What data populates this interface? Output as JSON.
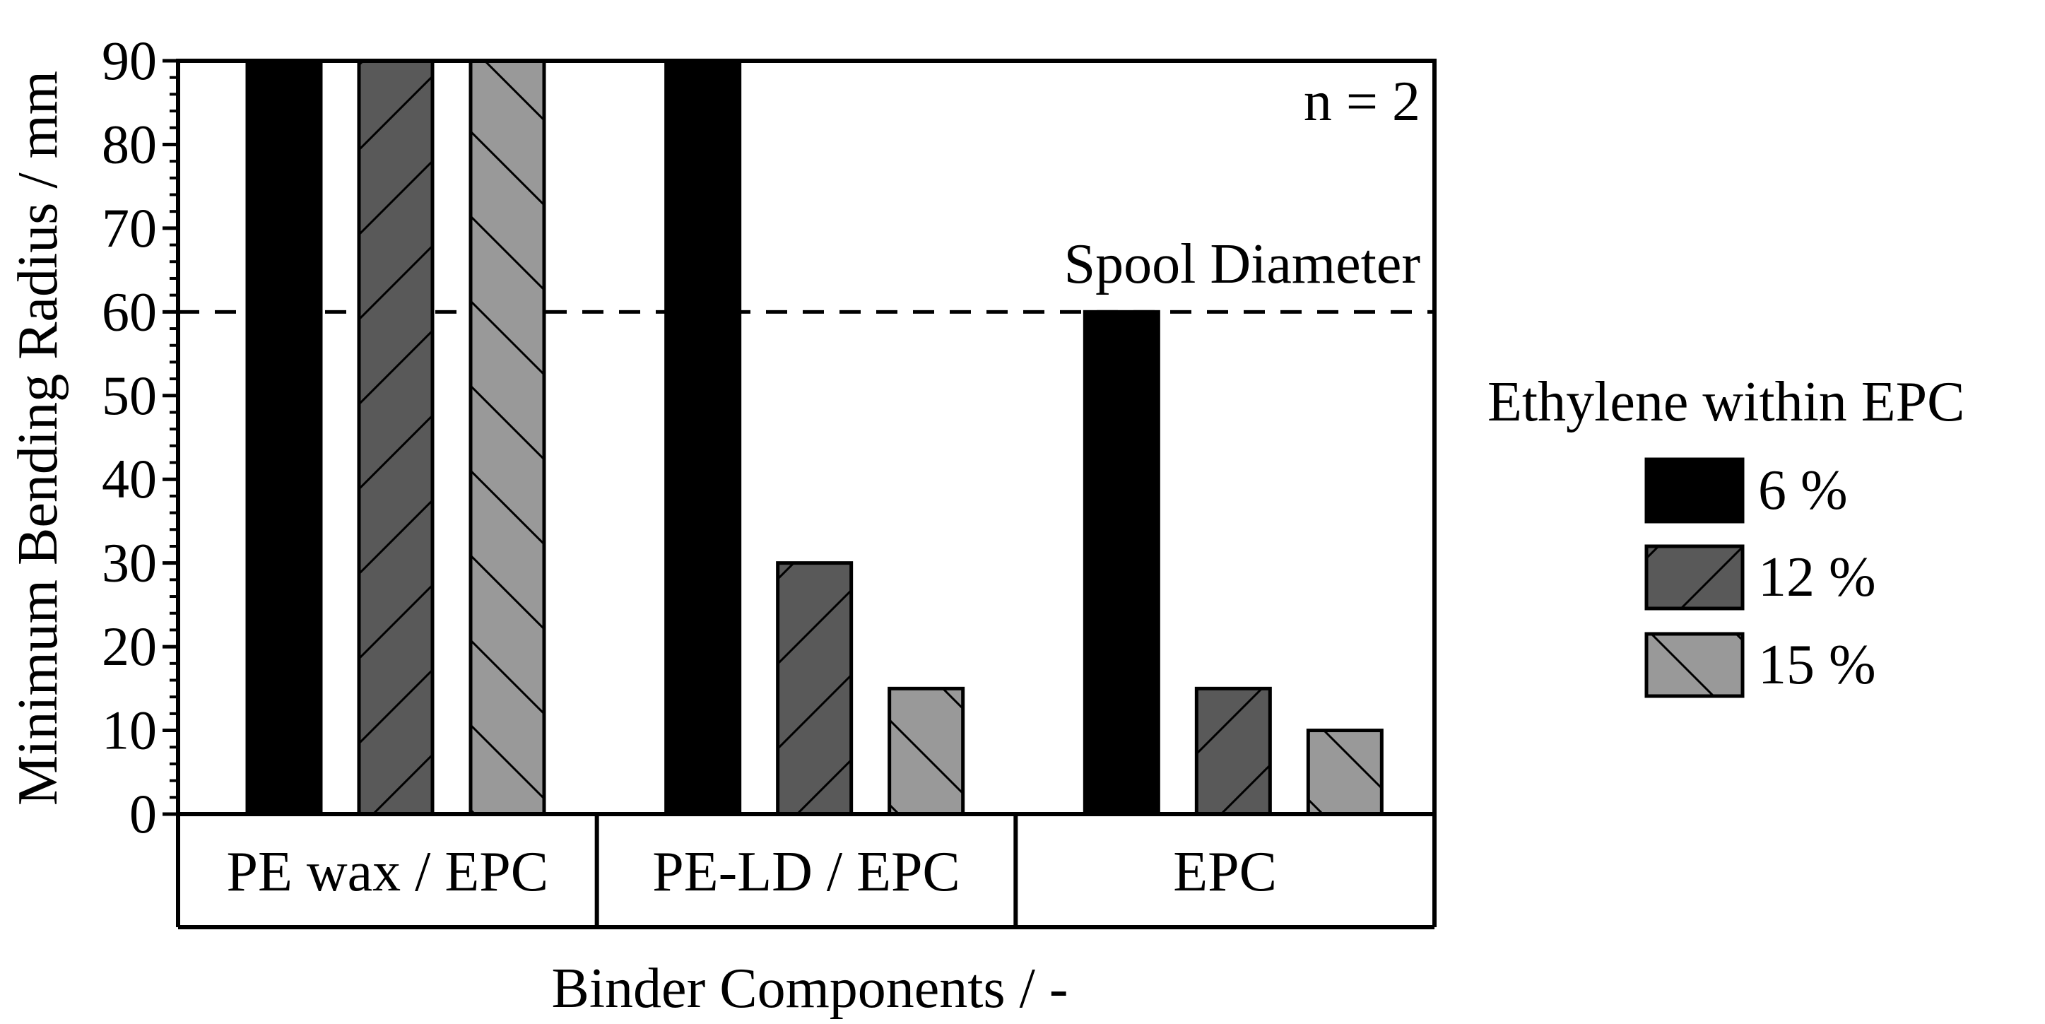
{
  "chart_data": {
    "type": "bar",
    "title": "",
    "xlabel": "Binder Components / -",
    "ylabel": "Minimum Bending Radius / mm",
    "ylim": [
      0,
      90
    ],
    "yticks": [
      0,
      10,
      20,
      30,
      40,
      50,
      60,
      70,
      80,
      90
    ],
    "yticks_labels": [
      "0",
      "10",
      "20",
      "30",
      "40",
      "50",
      "60",
      "70",
      "80",
      "90"
    ],
    "categories": [
      "PE wax / EPC",
      "PE-LD / EPC",
      "EPC"
    ],
    "series": [
      {
        "name": "6 %",
        "values": [
          90,
          90,
          60
        ],
        "color": "#000000",
        "pattern": "solid"
      },
      {
        "name": "12 %",
        "values": [
          90,
          30,
          15
        ],
        "color": "#595959",
        "pattern": "forward-hatch"
      },
      {
        "name": "15 %",
        "values": [
          90,
          15,
          10
        ],
        "color": "#999999",
        "pattern": "back-hatch"
      }
    ],
    "legend": {
      "title": "Ethylene within EPC",
      "placement": "right"
    },
    "reference_line": {
      "value": 60,
      "label": "Spool Diameter",
      "style": "dashed"
    },
    "annotation": "n = 2",
    "grid": false
  }
}
